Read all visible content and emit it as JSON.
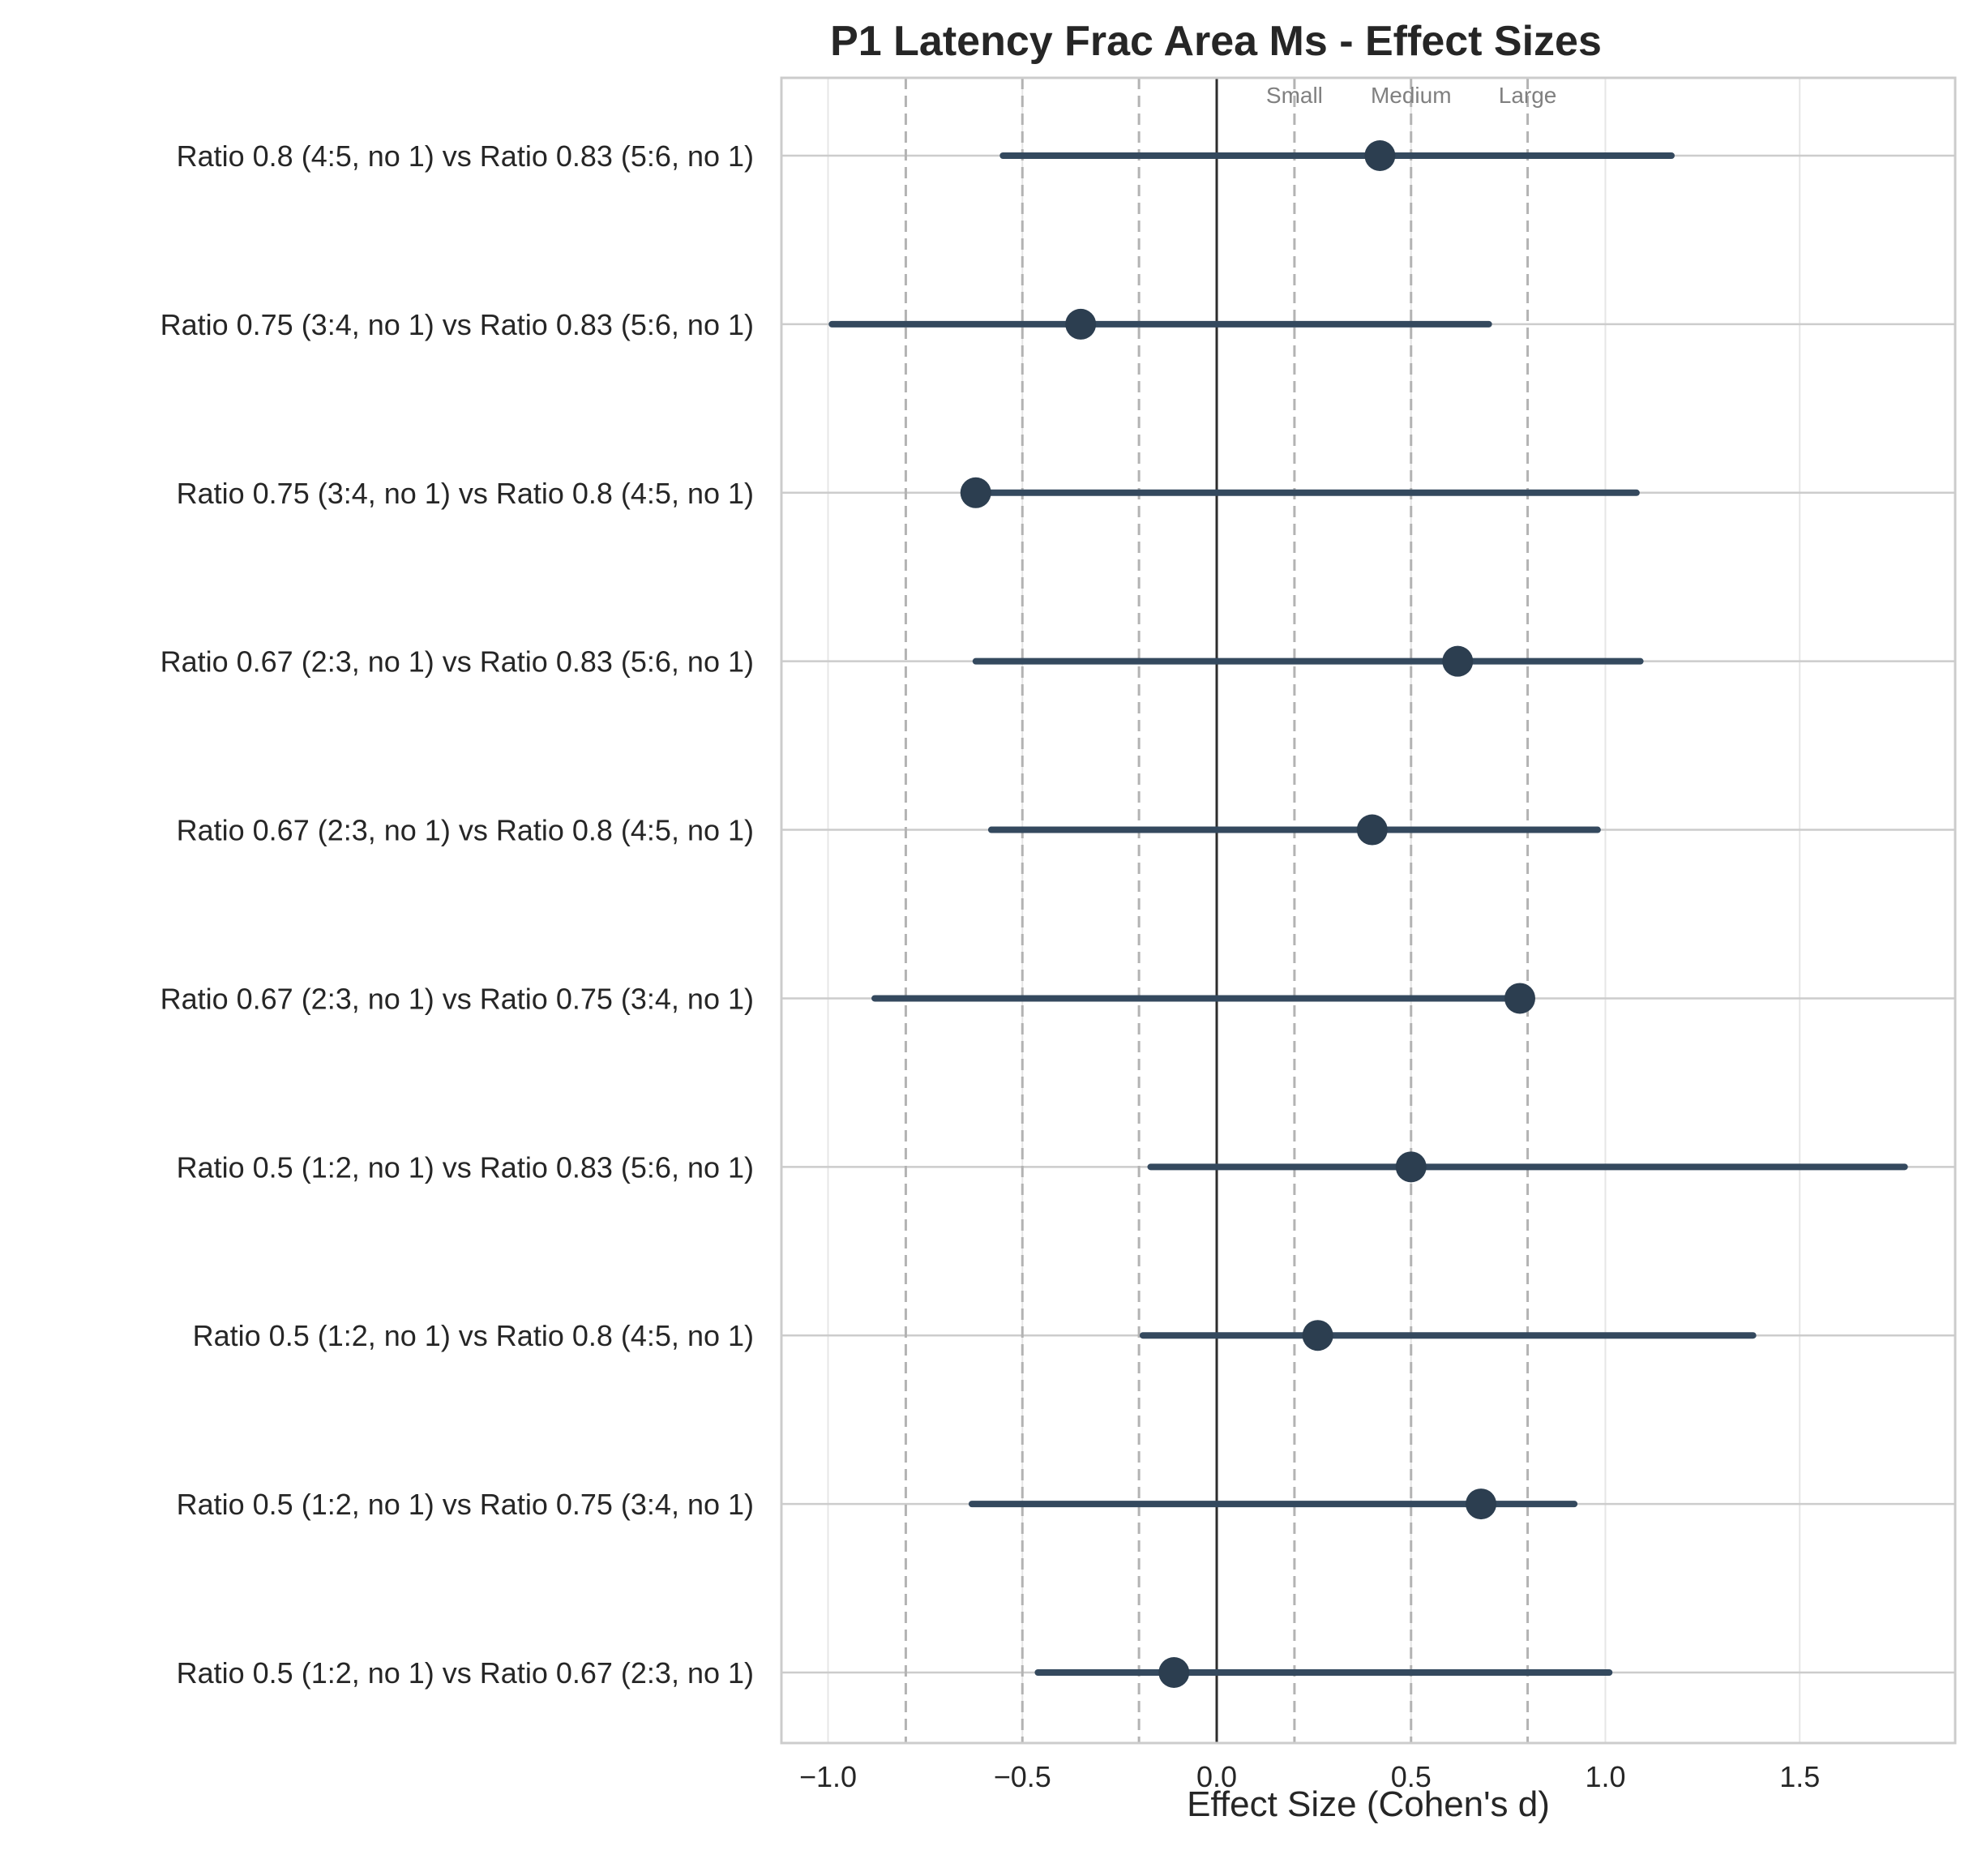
{
  "chart_data": {
    "type": "forest",
    "title": "P1 Latency Frac Area Ms - Effect Sizes",
    "xlabel": "Effect Size (Cohen's d)",
    "ylabel": "",
    "xlim": [
      -1.12,
      1.9
    ],
    "xticks": [
      -1.0,
      -0.5,
      0.0,
      0.5,
      1.0,
      1.5
    ],
    "xtick_labels": [
      "−1.0",
      "−0.5",
      "0.0",
      "0.5",
      "1.0",
      "1.5"
    ],
    "grid": true,
    "zero_line": 0,
    "reference_lines": [
      {
        "label": "Small",
        "value": 0.2
      },
      {
        "label": "Medium",
        "value": 0.5
      },
      {
        "label": "Large",
        "value": 0.8
      },
      {
        "label": "",
        "value": -0.2
      },
      {
        "label": "",
        "value": -0.5
      },
      {
        "label": "",
        "value": -0.8
      }
    ],
    "comparisons": [
      {
        "label": "Ratio 0.8 (4:5, no 1) vs Ratio 0.83 (5:6, no 1)",
        "d": 0.42,
        "ci_low": -0.55,
        "ci_high": 1.17
      },
      {
        "label": "Ratio 0.75 (3:4, no 1) vs Ratio 0.83 (5:6, no 1)",
        "d": -0.35,
        "ci_low": -0.99,
        "ci_high": 0.7
      },
      {
        "label": "Ratio 0.75 (3:4, no 1) vs Ratio 0.8 (4:5, no 1)",
        "d": -0.62,
        "ci_low": -0.62,
        "ci_high": 1.08
      },
      {
        "label": "Ratio 0.67 (2:3, no 1) vs Ratio 0.83 (5:6, no 1)",
        "d": 0.62,
        "ci_low": -0.62,
        "ci_high": 1.09
      },
      {
        "label": "Ratio 0.67 (2:3, no 1) vs Ratio 0.8 (4:5, no 1)",
        "d": 0.4,
        "ci_low": -0.58,
        "ci_high": 0.98
      },
      {
        "label": "Ratio 0.67 (2:3, no 1) vs Ratio 0.75 (3:4, no 1)",
        "d": 0.78,
        "ci_low": -0.88,
        "ci_high": 0.78
      },
      {
        "label": "Ratio 0.5 (1:2, no 1) vs Ratio 0.83 (5:6, no 1)",
        "d": 0.5,
        "ci_low": -0.17,
        "ci_high": 1.77
      },
      {
        "label": "Ratio 0.5 (1:2, no 1) vs Ratio 0.8 (4:5, no 1)",
        "d": 0.26,
        "ci_low": -0.19,
        "ci_high": 1.38
      },
      {
        "label": "Ratio 0.5 (1:2, no 1) vs Ratio 0.75 (3:4, no 1)",
        "d": 0.68,
        "ci_low": -0.63,
        "ci_high": 0.92
      },
      {
        "label": "Ratio 0.5 (1:2, no 1) vs Ratio 0.67 (2:3, no 1)",
        "d": -0.11,
        "ci_low": -0.46,
        "ci_high": 1.01
      }
    ],
    "colors": {
      "point": "#2c3e50",
      "ci_line": "#34495e",
      "zero_line": "#2d2d2d",
      "reference_line": "#b3b3b3",
      "grid": "#e6e6e6",
      "spine": "#cccccc"
    }
  }
}
